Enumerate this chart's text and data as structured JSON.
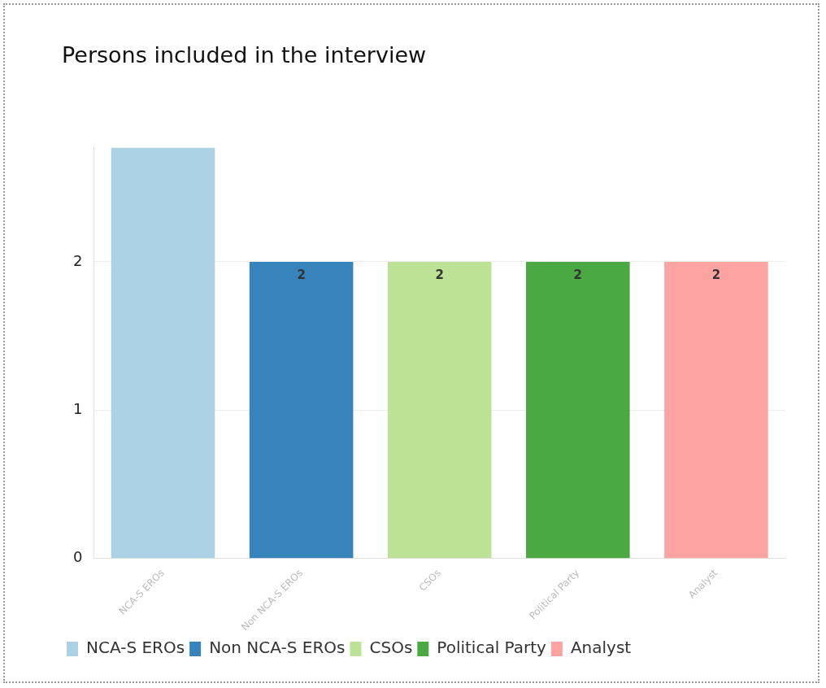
{
  "chart_data": {
    "type": "bar",
    "title": "Persons included in the interview",
    "categories": [
      "NCA-S EROs",
      "Non NCA-S EROs",
      "CSOs",
      "Political Party",
      "Analyst"
    ],
    "series": [
      {
        "name": "NCA-S EROs",
        "color": "#abd1e4",
        "values": [
          2.77,
          null,
          null,
          null,
          null
        ],
        "value_labels": [
          null,
          null,
          null,
          null,
          null
        ]
      },
      {
        "name": "Non NCA-S EROs",
        "color": "#3684bb",
        "values": [
          null,
          2,
          null,
          null,
          null
        ],
        "value_labels": [
          null,
          "2",
          null,
          null,
          null
        ]
      },
      {
        "name": "CSOs",
        "color": "#bce296",
        "values": [
          null,
          null,
          2,
          null,
          null
        ],
        "value_labels": [
          null,
          null,
          "2",
          null,
          null
        ]
      },
      {
        "name": "Political Party",
        "color": "#4aa942",
        "values": [
          null,
          null,
          null,
          2,
          null
        ],
        "value_labels": [
          null,
          null,
          null,
          "2",
          null
        ]
      },
      {
        "name": "Analyst",
        "color": "#fda4a3",
        "values": [
          null,
          null,
          null,
          null,
          2
        ],
        "value_labels": [
          null,
          null,
          null,
          null,
          "2"
        ]
      }
    ],
    "ylim": [
      0,
      2.77
    ],
    "yticks": [
      0,
      1,
      2
    ],
    "grid": "y",
    "legend": "bottom left"
  }
}
